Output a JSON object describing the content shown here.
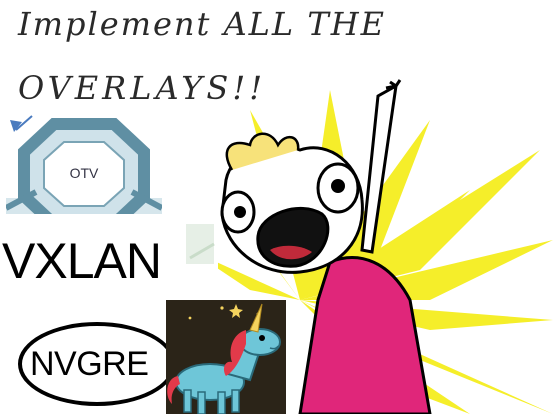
{
  "meme": {
    "caption_line_1": "Implement ALL THE",
    "caption_line_2": "OVERLAYS!!"
  },
  "logos": {
    "otv_label": "OTV",
    "vxlan_label": "VXLAN",
    "nvgre_label": "NVGRE"
  },
  "colors": {
    "burst_yellow": "#f5ee2a",
    "shirt_magenta": "#e0267a",
    "otv_teal": "#5f8fa3",
    "unicorn_blue": "#6ec6d8",
    "unicorn_mane": "#e23a4a"
  },
  "images": {
    "otv_icon": "octagon-logo-icon",
    "unicorn_icon": "unicorn-icon",
    "character_icon": "all-the-things-character-icon"
  }
}
